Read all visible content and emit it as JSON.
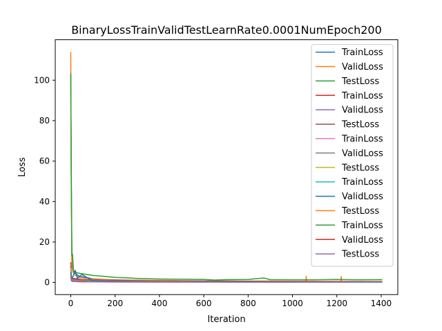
{
  "chart_data": {
    "type": "line",
    "title": "BinaryLossTrainValidTestLearnRate0.0001NumEpoch200",
    "xlabel": "Iteration",
    "ylabel": "Loss",
    "xlim": [
      -70,
      1475
    ],
    "ylim": [
      -6,
      120
    ],
    "xticks": [
      0,
      200,
      400,
      600,
      800,
      1000,
      1200,
      1400
    ],
    "yticks": [
      0,
      20,
      40,
      60,
      80,
      100
    ],
    "grid": false,
    "legend_position": "top-right",
    "series": [
      {
        "name": "TrainLoss",
        "color": "#1f77b4",
        "x": [
          0,
          2,
          5,
          10,
          20,
          40,
          70,
          100,
          150,
          200,
          300,
          400,
          500,
          600,
          700,
          800,
          900,
          1000,
          1100,
          1200,
          1300,
          1405
        ],
        "y": [
          104,
          60,
          14,
          6,
          4.5,
          3,
          2.5,
          1.8,
          1.5,
          1.3,
          1.1,
          0.9,
          0.8,
          0.7,
          0.6,
          0.6,
          0.5,
          0.5,
          0.5,
          0.4,
          0.4,
          0.4
        ]
      },
      {
        "name": "ValidLoss",
        "color": "#ff7f0e",
        "x": [
          0,
          2,
          5,
          10,
          20,
          40,
          70,
          100,
          150,
          200,
          300,
          400,
          500,
          600,
          700,
          800,
          900,
          1000,
          1060,
          1062,
          1064,
          1100,
          1200,
          1218,
          1220,
          1222,
          1300,
          1405
        ],
        "y": [
          114,
          50,
          8,
          5,
          3.5,
          2.5,
          2,
          1.6,
          1.4,
          1.2,
          1.1,
          1,
          0.9,
          0.8,
          0.8,
          0.7,
          0.7,
          0.6,
          0.6,
          3,
          0.6,
          0.6,
          0.6,
          0.6,
          3,
          0.6,
          0.5,
          0.5
        ]
      },
      {
        "name": "TestLoss",
        "color": "#2ca02c",
        "x": [
          0,
          2,
          5,
          8,
          12,
          20,
          40,
          70,
          100,
          150,
          200,
          250,
          300,
          400,
          500,
          600,
          650,
          700,
          800,
          870,
          900,
          1000,
          1100,
          1200,
          1300,
          1405
        ],
        "y": [
          103,
          55,
          13,
          14,
          6,
          5,
          4.5,
          4,
          3.5,
          3,
          2.5,
          2.3,
          2,
          1.7,
          1.6,
          1.5,
          1.2,
          1.4,
          1.5,
          2.2,
          1.4,
          1.3,
          1.3,
          1.5,
          1.3,
          1.4
        ]
      },
      {
        "name": "TrainLoss",
        "color": "#d62728",
        "x": [
          0,
          3,
          10,
          50,
          100,
          200,
          400,
          600,
          800,
          1000,
          1200,
          1405
        ],
        "y": [
          10,
          3,
          2,
          1.5,
          1.2,
          1,
          0.8,
          0.7,
          0.6,
          0.5,
          0.5,
          0.5
        ]
      },
      {
        "name": "ValidLoss",
        "color": "#9467bd",
        "x": [
          0,
          3,
          10,
          50,
          100,
          200,
          400,
          600,
          800,
          1000,
          1200,
          1405
        ],
        "y": [
          9,
          2.5,
          1.5,
          1.2,
          1,
          0.8,
          0.7,
          0.6,
          0.5,
          0.5,
          0.4,
          0.4
        ]
      },
      {
        "name": "TestLoss",
        "color": "#8c564b",
        "x": [
          0,
          3,
          10,
          50,
          100,
          200,
          400,
          600,
          800,
          1000,
          1200,
          1405
        ],
        "y": [
          8,
          2,
          1.3,
          1,
          0.9,
          0.8,
          0.7,
          0.6,
          0.5,
          0.5,
          0.4,
          0.4
        ]
      },
      {
        "name": "TrainLoss",
        "color": "#e377c2",
        "x": [
          0,
          3,
          10,
          50,
          100,
          200,
          400,
          600,
          800,
          1000,
          1200,
          1405
        ],
        "y": [
          7,
          1.8,
          1.1,
          0.9,
          0.8,
          0.7,
          0.6,
          0.5,
          0.5,
          0.4,
          0.4,
          0.4
        ]
      },
      {
        "name": "ValidLoss",
        "color": "#7f7f7f",
        "x": [
          0,
          3,
          10,
          50,
          100,
          200,
          400,
          600,
          800,
          1000,
          1200,
          1405
        ],
        "y": [
          6,
          1.5,
          1,
          0.8,
          0.7,
          0.6,
          0.5,
          0.5,
          0.4,
          0.4,
          0.3,
          0.3
        ]
      },
      {
        "name": "TestLoss",
        "color": "#bcbd22",
        "x": [
          0,
          3,
          10,
          50,
          100,
          200,
          400,
          600,
          800,
          1000,
          1200,
          1405
        ],
        "y": [
          6,
          1.4,
          0.9,
          0.7,
          0.6,
          0.5,
          0.5,
          0.4,
          0.4,
          0.3,
          0.3,
          0.3
        ]
      },
      {
        "name": "TrainLoss",
        "color": "#17becf",
        "x": [
          0,
          3,
          10,
          50,
          100,
          200,
          400,
          600,
          800,
          1000,
          1200,
          1405
        ],
        "y": [
          5,
          1.2,
          0.8,
          0.6,
          0.5,
          0.5,
          0.4,
          0.4,
          0.3,
          0.3,
          0.3,
          0.3
        ]
      },
      {
        "name": "ValidLoss",
        "color": "#1f77b4",
        "x": [
          0,
          3,
          10,
          20,
          30,
          50,
          80,
          100,
          200,
          400,
          600,
          800,
          1000,
          1200,
          1405
        ],
        "y": [
          5,
          1.5,
          3,
          6,
          2,
          4,
          2,
          0.8,
          0.6,
          0.5,
          0.4,
          0.4,
          0.3,
          0.3,
          0.3
        ]
      },
      {
        "name": "TestLoss",
        "color": "#ff7f0e",
        "x": [
          0,
          3,
          10,
          50,
          100,
          200,
          400,
          600,
          800,
          1000,
          1200,
          1405
        ],
        "y": [
          4,
          1,
          0.7,
          0.5,
          0.5,
          0.4,
          0.4,
          0.3,
          0.3,
          0.3,
          0.2,
          0.2
        ]
      },
      {
        "name": "TrainLoss",
        "color": "#2ca02c",
        "x": [
          0,
          3,
          10,
          50,
          100,
          200,
          400,
          600,
          800,
          1000,
          1200,
          1405
        ],
        "y": [
          4,
          1,
          0.6,
          0.5,
          0.4,
          0.4,
          0.3,
          0.3,
          0.3,
          0.2,
          0.2,
          0.2
        ]
      },
      {
        "name": "ValidLoss",
        "color": "#d62728",
        "x": [
          0,
          3,
          10,
          50,
          100,
          200,
          400,
          600,
          800,
          1000,
          1200,
          1405
        ],
        "y": [
          3,
          0.8,
          0.5,
          0.4,
          0.3,
          0.3,
          0.2,
          0.2,
          0.2,
          0.2,
          0.1,
          0.1
        ]
      },
      {
        "name": "TestLoss",
        "color": "#9467bd",
        "x": [
          0,
          3,
          10,
          50,
          100,
          200,
          400,
          600,
          800,
          1000,
          1200,
          1405
        ],
        "y": [
          3,
          0.7,
          0.5,
          0.3,
          0.3,
          0.2,
          0.2,
          0.2,
          0.1,
          0.1,
          0.1,
          0.1
        ]
      }
    ]
  }
}
